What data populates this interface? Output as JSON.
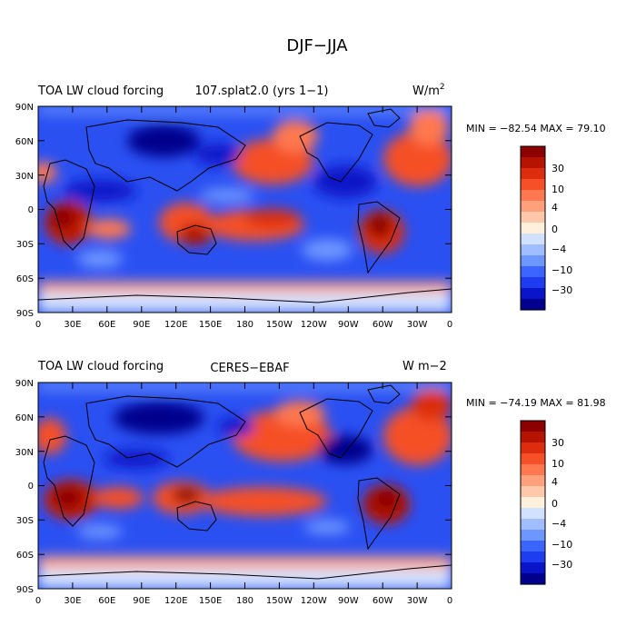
{
  "page": {
    "title": "DJF−JJA"
  },
  "colors": {
    "negative": [
      "#00008c",
      "#0a14c8",
      "#1e3cf0",
      "#3c64ff",
      "#6e96ff",
      "#a0beff",
      "#d2e1ff"
    ],
    "neutral": "#fff0dc",
    "positive": [
      "#ffc8aa",
      "#ffa07d",
      "#ff7850",
      "#f55028",
      "#dc2d0f",
      "#b41400",
      "#8c0000"
    ],
    "land_outline": "#000000"
  },
  "panels": [
    {
      "id": "model",
      "left_title": "TOA LW cloud forcing",
      "center_title": "107.splat2.0 (yrs 1−1)",
      "units": "W/m",
      "units_superscript": "2",
      "stats": "MIN = −82.54  MAX =  79.10"
    },
    {
      "id": "obs",
      "left_title": "TOA LW cloud forcing",
      "center_title": "CERES−EBAF",
      "units": "W m−2",
      "units_superscript": "",
      "stats": "MIN = −74.19  MAX =  81.98"
    }
  ],
  "axes": {
    "lat_labels": [
      "90N",
      "60N",
      "30N",
      "0",
      "30S",
      "60S",
      "90S"
    ],
    "lon_labels": [
      "0",
      "30E",
      "60E",
      "90E",
      "120E",
      "150E",
      "180",
      "150W",
      "120W",
      "90W",
      "60W",
      "30W",
      "0"
    ]
  },
  "colorbar": {
    "labels": [
      "30",
      "10",
      "4",
      "0",
      "−4",
      "−10",
      "−30"
    ]
  }
}
